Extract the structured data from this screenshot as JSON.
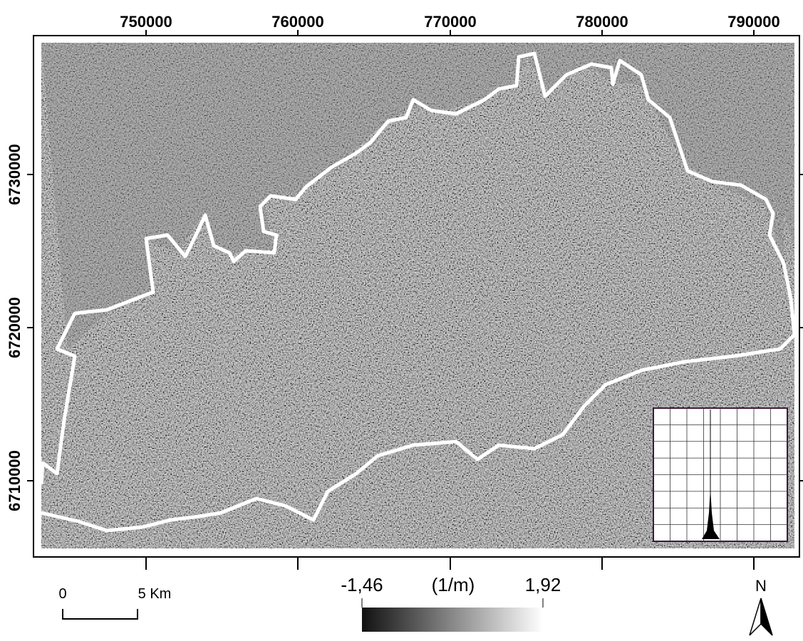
{
  "map": {
    "x_ticks": [
      "750000",
      "760000",
      "770000",
      "780000",
      "790000"
    ],
    "y_ticks": [
      "6730000",
      "6720000",
      "6710000"
    ],
    "scale_bar": {
      "start": "0",
      "end": "5 Km"
    },
    "legend": {
      "min": "-1,46",
      "unit": "(1/m)",
      "max": "1,92"
    },
    "north": "N"
  }
}
